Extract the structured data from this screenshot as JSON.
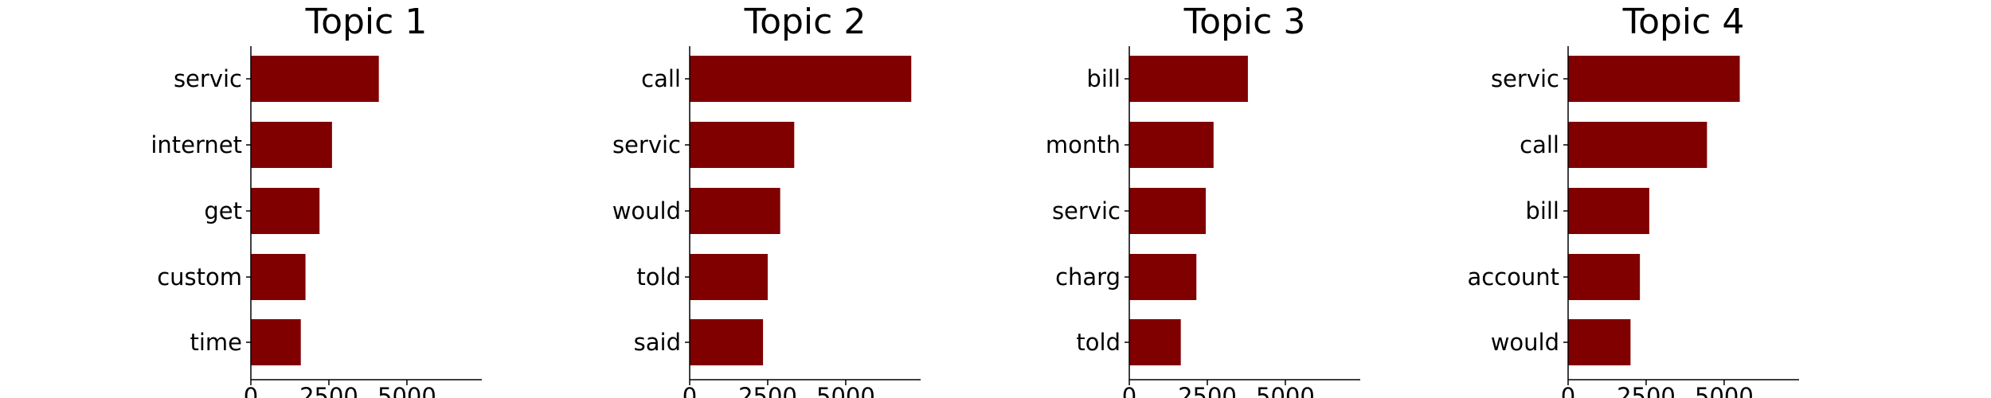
{
  "colors": {
    "bar": "#800000",
    "axis": "#000000",
    "background": "#ffffff"
  },
  "chart_data": [
    {
      "type": "bar",
      "orientation": "horizontal",
      "title": "Topic 1",
      "categories": [
        "servic",
        "internet",
        "get",
        "custom",
        "time"
      ],
      "values": [
        4100,
        2600,
        2200,
        1750,
        1600
      ],
      "xlim": [
        0,
        7400
      ],
      "xticks": [
        "0",
        "2500",
        "5000"
      ],
      "xlabel": "",
      "ylabel": "",
      "grid": false,
      "legend": "none"
    },
    {
      "type": "bar",
      "orientation": "horizontal",
      "title": "Topic 2",
      "categories": [
        "call",
        "servic",
        "would",
        "told",
        "said"
      ],
      "values": [
        7100,
        3350,
        2900,
        2500,
        2350
      ],
      "xlim": [
        0,
        7400
      ],
      "xticks": [
        "0",
        "2500",
        "5000"
      ],
      "xlabel": "",
      "ylabel": "",
      "grid": false,
      "legend": "none"
    },
    {
      "type": "bar",
      "orientation": "horizontal",
      "title": "Topic 3",
      "categories": [
        "bill",
        "month",
        "servic",
        "charg",
        "told"
      ],
      "values": [
        3800,
        2700,
        2450,
        2150,
        1650
      ],
      "xlim": [
        0,
        7400
      ],
      "xticks": [
        "0",
        "2500",
        "5000"
      ],
      "xlabel": "",
      "ylabel": "",
      "grid": false,
      "legend": "none"
    },
    {
      "type": "bar",
      "orientation": "horizontal",
      "title": "Topic 4",
      "categories": [
        "servic",
        "call",
        "bill",
        "account",
        "would"
      ],
      "values": [
        5500,
        4450,
        2600,
        2300,
        2000
      ],
      "xlim": [
        0,
        7400
      ],
      "xticks": [
        "0",
        "2500",
        "5000"
      ],
      "xlabel": "",
      "ylabel": "",
      "grid": false,
      "legend": "none"
    }
  ]
}
